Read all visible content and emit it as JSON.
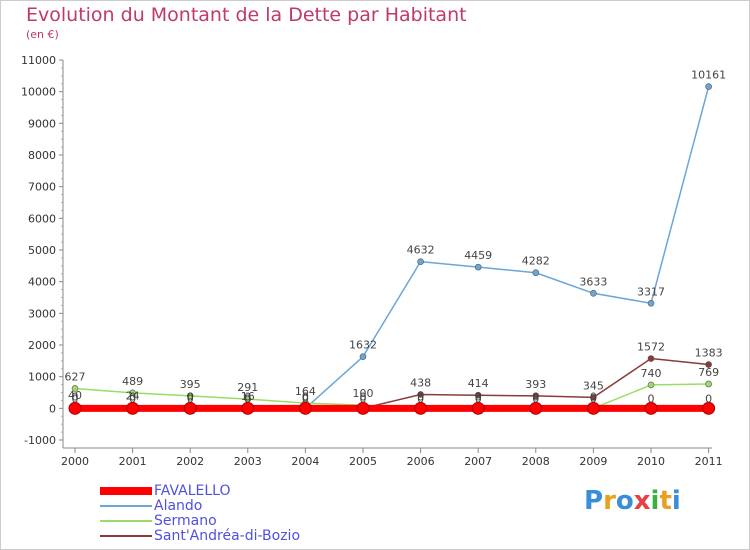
{
  "header": {
    "title": "Evolution du Montant de la Dette par Habitant",
    "subtitle": "(en €)"
  },
  "logo": {
    "text": "Proxiti",
    "colors": [
      "#3a8ed8",
      "#e8a020",
      "#3a8ed8",
      "#e84040",
      "#3ab040",
      "#e8a020",
      "#3a8ed8"
    ]
  },
  "chart_data": {
    "type": "line",
    "categories": [
      "2000",
      "2001",
      "2002",
      "2003",
      "2004",
      "2005",
      "2006",
      "2007",
      "2008",
      "2009",
      "2010",
      "2011"
    ],
    "ylim": [
      -1000,
      11000
    ],
    "yticks": [
      "-1000",
      "0",
      "1000",
      "2000",
      "3000",
      "4000",
      "5000",
      "6000",
      "7000",
      "8000",
      "9000",
      "10000",
      "11000"
    ],
    "grid": false,
    "legend_position": "bottom-left",
    "series": [
      {
        "name": "FAVALELLO",
        "color": "#ff0000",
        "values": [
          0,
          0,
          0,
          0,
          0,
          0,
          0,
          0,
          0,
          0,
          0,
          0
        ],
        "labels": [
          "0",
          "0",
          "0",
          "0",
          "0",
          "0",
          "0",
          "0",
          "0",
          "0",
          "0",
          "0"
        ]
      },
      {
        "name": "Alando",
        "color": "#6aa6d8",
        "values": [
          40,
          24,
          0,
          0,
          0,
          1632,
          4632,
          4459,
          4282,
          3633,
          3317,
          10161
        ],
        "labels": [
          "40",
          "24",
          "0",
          "0",
          "0",
          "1632",
          "4632",
          "4459",
          "4282",
          "3633",
          "3317",
          "10161"
        ]
      },
      {
        "name": "Sermano",
        "color": "#99dd66",
        "values": [
          627,
          489,
          395,
          291,
          164,
          100,
          0,
          0,
          0,
          0,
          740,
          769
        ],
        "labels": [
          "627",
          "489",
          "395",
          "291",
          "164",
          "100",
          "0",
          "0",
          "0",
          "0",
          "740",
          "769"
        ]
      },
      {
        "name": "Sant'Andréa-di-Bozio",
        "color": "#8b3a3a",
        "values": [
          0,
          0,
          0,
          16,
          0,
          0,
          438,
          414,
          393,
          345,
          1572,
          1383
        ],
        "labels": [
          "0",
          "0",
          "0",
          "16",
          "0",
          "0",
          "438",
          "414",
          "393",
          "345",
          "1572",
          "1383"
        ]
      }
    ]
  }
}
